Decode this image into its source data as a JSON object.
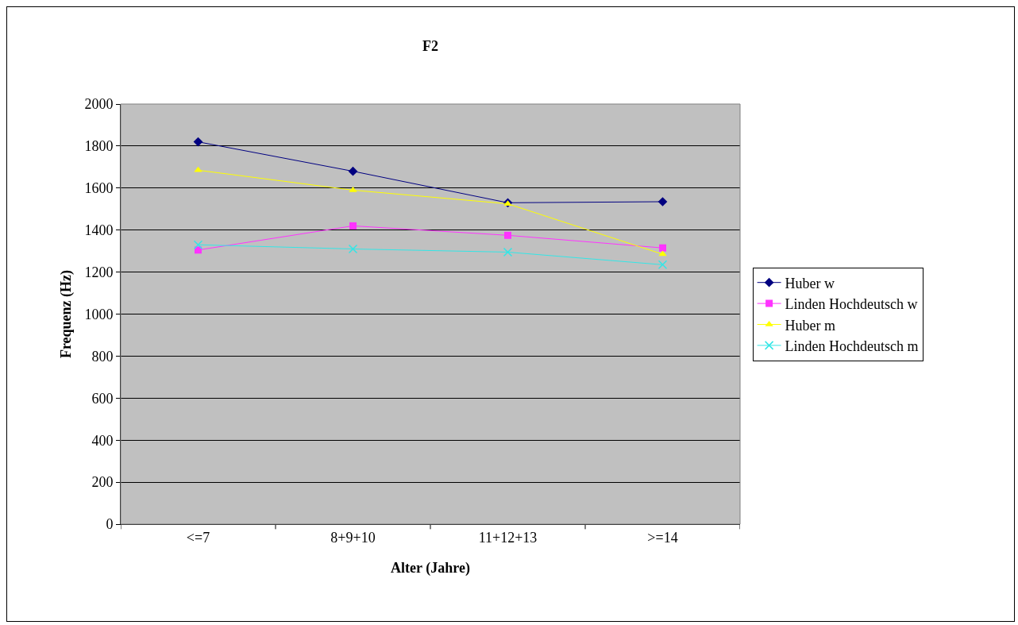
{
  "chart_data": {
    "type": "line",
    "title": "F2",
    "xlabel": "Alter (Jahre)",
    "ylabel": "Frequenz (Hz)",
    "categories": [
      "<=7",
      "8+9+10",
      "11+12+13",
      ">=14"
    ],
    "series": [
      {
        "name": "Huber w",
        "color": "#000080",
        "marker": "diamond",
        "values": [
          1820,
          1680,
          1530,
          1535
        ]
      },
      {
        "name": "Linden Hochdeutsch w",
        "color": "#ff33ff",
        "marker": "square",
        "values": [
          1305,
          1420,
          1375,
          1315
        ]
      },
      {
        "name": "Huber m",
        "color": "#ffff00",
        "marker": "triangle",
        "values": [
          1685,
          1590,
          1525,
          1285
        ]
      },
      {
        "name": "Linden Hochdeutsch m",
        "color": "#33e6e6",
        "marker": "cross",
        "values": [
          1330,
          1310,
          1295,
          1235
        ]
      }
    ],
    "ylim": [
      0,
      2000
    ],
    "yticks": [
      0,
      200,
      400,
      600,
      800,
      1000,
      1200,
      1400,
      1600,
      1800,
      2000
    ],
    "grid": "y",
    "legend": "right",
    "line_style": "solid"
  }
}
